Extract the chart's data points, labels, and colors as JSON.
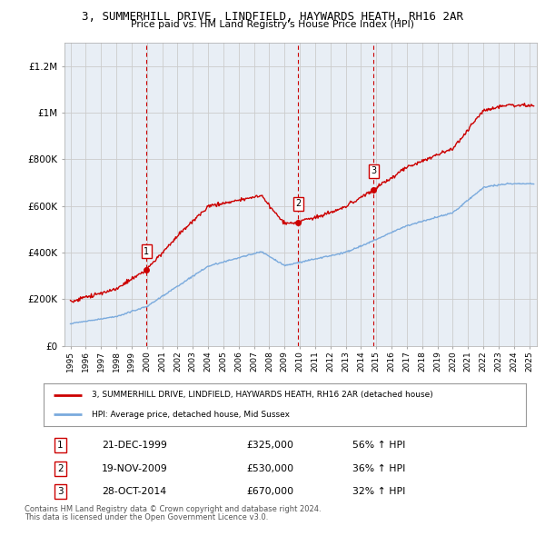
{
  "title": "3, SUMMERHILL DRIVE, LINDFIELD, HAYWARDS HEATH, RH16 2AR",
  "subtitle": "Price paid vs. HM Land Registry's House Price Index (HPI)",
  "ylim": [
    0,
    1300000
  ],
  "yticks": [
    0,
    200000,
    400000,
    600000,
    800000,
    1000000,
    1200000
  ],
  "ytick_labels": [
    "£0",
    "£200K",
    "£400K",
    "£600K",
    "£800K",
    "£1M",
    "£1.2M"
  ],
  "sale_dates_num": [
    1999.97,
    2009.89,
    2014.83
  ],
  "sale_prices": [
    325000,
    530000,
    670000
  ],
  "sale_labels": [
    "1",
    "2",
    "3"
  ],
  "sale_info": [
    {
      "label": "1",
      "date": "21-DEC-1999",
      "price": "£325,000",
      "hpi": "56% ↑ HPI"
    },
    {
      "label": "2",
      "date": "19-NOV-2009",
      "price": "£530,000",
      "hpi": "36% ↑ HPI"
    },
    {
      "label": "3",
      "date": "28-OCT-2014",
      "price": "£670,000",
      "hpi": "32% ↑ HPI"
    }
  ],
  "red_line_color": "#cc0000",
  "blue_line_color": "#7aaadd",
  "sale_marker_color": "#cc0000",
  "dashed_vline_color": "#cc0000",
  "grid_color": "#cccccc",
  "background_color": "#ffffff",
  "plot_bg_color": "#e8eef5",
  "legend_line1": "3, SUMMERHILL DRIVE, LINDFIELD, HAYWARDS HEATH, RH16 2AR (detached house)",
  "legend_line2": "HPI: Average price, detached house, Mid Sussex",
  "footer1": "Contains HM Land Registry data © Crown copyright and database right 2024.",
  "footer2": "This data is licensed under the Open Government Licence v3.0.",
  "xstart": 1994.6,
  "xend": 2025.5
}
